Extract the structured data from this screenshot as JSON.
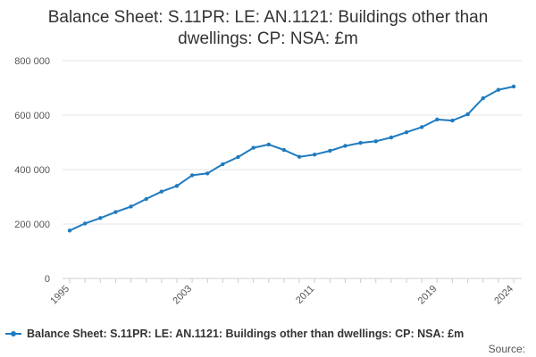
{
  "chart_data": {
    "type": "line",
    "title_line1": "Balance Sheet: S.11PR: LE: AN.1121: Buildings other than",
    "title_line2": "dwellings: CP: NSA: £m",
    "xlabel": "",
    "ylabel": "",
    "ylim": [
      0,
      800000
    ],
    "yticks": [
      0,
      200000,
      400000,
      600000,
      800000
    ],
    "ytick_labels": [
      "0",
      "200 000",
      "400 000",
      "600 000",
      "800 000"
    ],
    "xticks": [
      1995,
      2003,
      2011,
      2019,
      2024
    ],
    "xtick_labels": [
      "1995",
      "2003",
      "2011",
      "2019",
      "2024"
    ],
    "grid": true,
    "legend_position": "bottom",
    "x": [
      1995,
      1996,
      1997,
      1998,
      1999,
      2000,
      2001,
      2002,
      2003,
      2004,
      2005,
      2006,
      2007,
      2008,
      2009,
      2010,
      2011,
      2012,
      2013,
      2014,
      2015,
      2016,
      2017,
      2018,
      2019,
      2020,
      2021,
      2022,
      2023,
      2024
    ],
    "series": [
      {
        "name": "Balance Sheet: S.11PR: LE: AN.1121: Buildings other than dwellings: CP: NSA: £m",
        "color": "#1f7bbf",
        "values": [
          176000,
          202000,
          222000,
          244000,
          264000,
          292000,
          319000,
          340000,
          379000,
          386000,
          420000,
          446000,
          480000,
          492000,
          472000,
          447000,
          455000,
          469000,
          487000,
          498000,
          504000,
          518000,
          537000,
          556000,
          584000,
          580000,
          603000,
          662000,
          693000,
          705000
        ]
      }
    ]
  },
  "legend": {
    "label": "Balance Sheet: S.11PR: LE: AN.1121: Buildings other than dwellings: CP: NSA: £m"
  },
  "source_label": "Source:"
}
